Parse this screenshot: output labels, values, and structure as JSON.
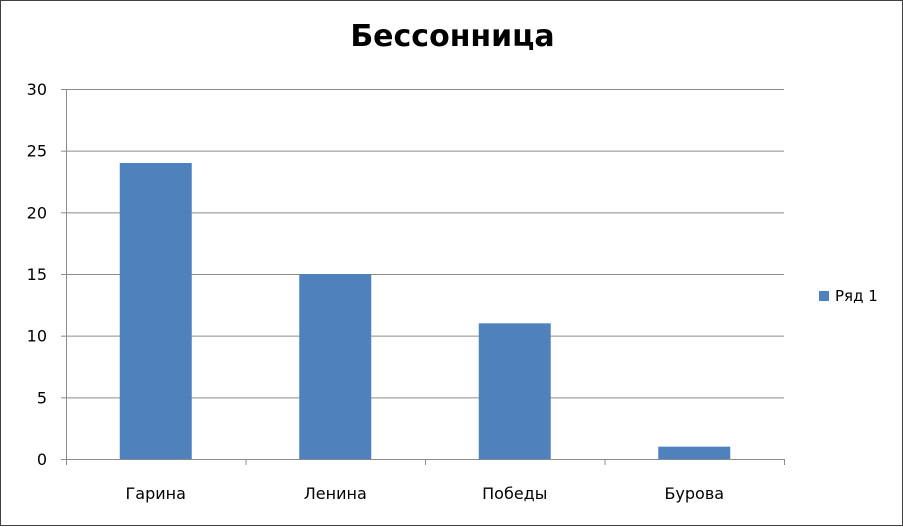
{
  "chart_data": {
    "type": "bar",
    "title": "Бессонница",
    "xlabel": "",
    "ylabel": "",
    "categories": [
      "Гарина",
      "Ленина",
      "Победы",
      "Бурова"
    ],
    "series": [
      {
        "name": "Ряд 1",
        "values": [
          24,
          15,
          11,
          1
        ],
        "color": "#4F81BD"
      }
    ],
    "ylim": [
      0,
      30
    ],
    "yticks": [
      0,
      5,
      10,
      15,
      20,
      25,
      30
    ],
    "grid": true,
    "legend_position": "right"
  }
}
